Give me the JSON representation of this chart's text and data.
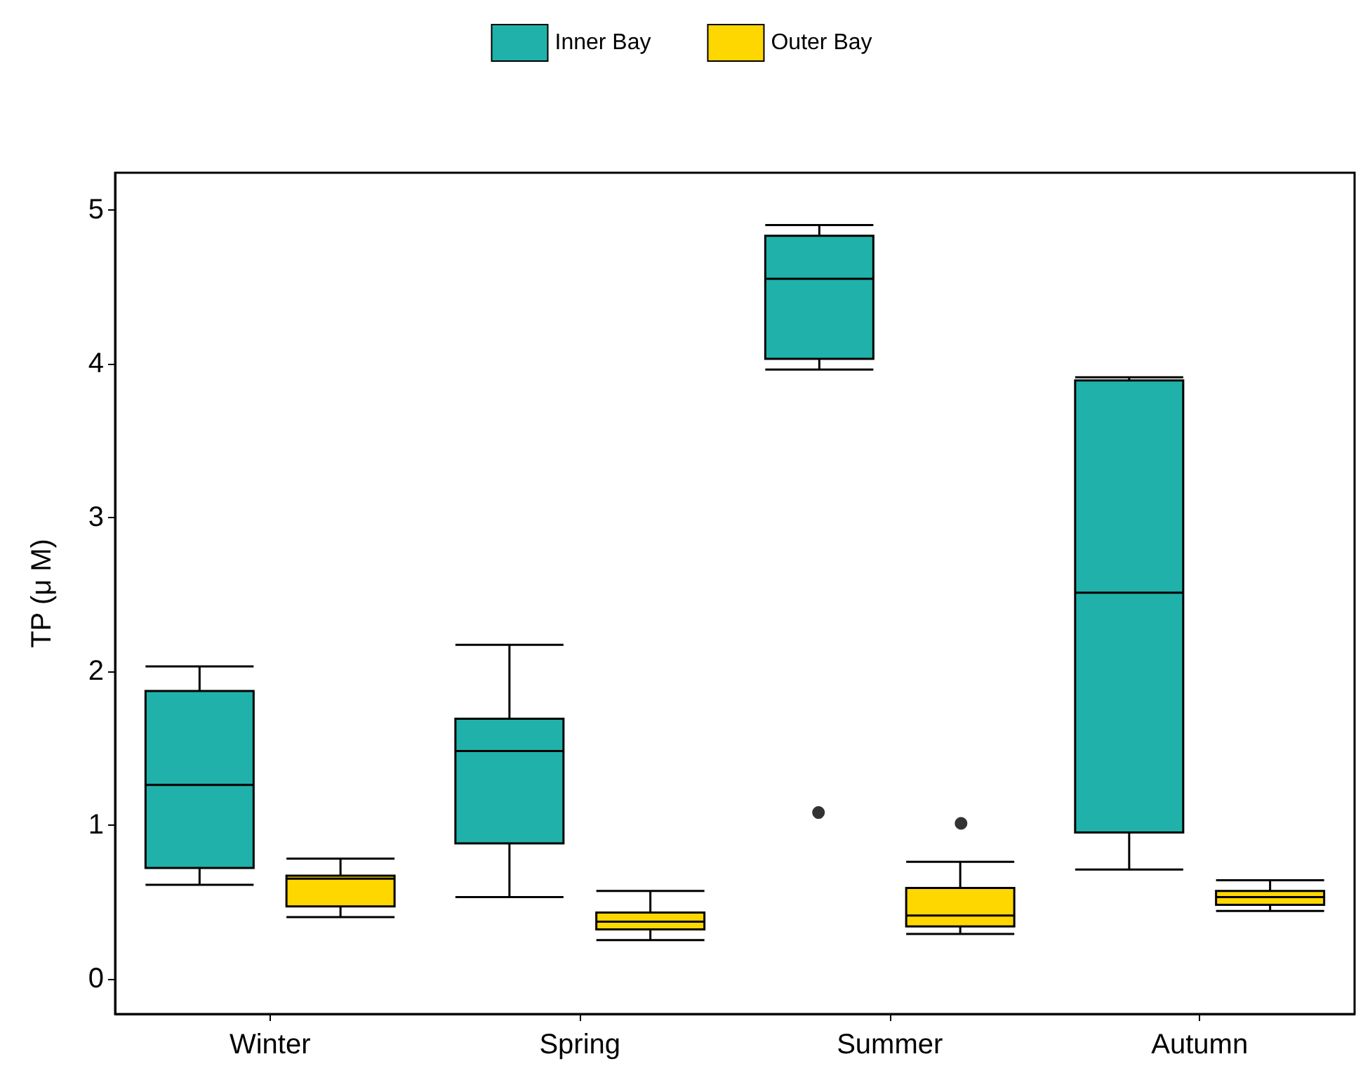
{
  "chart_data": {
    "type": "box",
    "ylabel": "TP (μ M)",
    "categories": [
      "Winter",
      "Spring",
      "Summer",
      "Autumn"
    ],
    "ylim": [
      -0.23,
      5.24
    ],
    "yticks": [
      0,
      1,
      2,
      3,
      4,
      5
    ],
    "grid": false,
    "legend": "top",
    "series": [
      {
        "name": "Inner Bay",
        "color": "#20b2aa",
        "boxes": [
          {
            "low": 0.61,
            "q1": 0.72,
            "median": 1.26,
            "q3": 1.87,
            "high": 2.03
          },
          {
            "low": 0.53,
            "q1": 0.88,
            "median": 1.48,
            "q3": 1.69,
            "high": 2.17
          },
          {
            "low": 3.96,
            "q1": 4.03,
            "median": 4.55,
            "q3": 4.83,
            "high": 4.9,
            "outliers": [
              1.08
            ]
          },
          {
            "low": 0.71,
            "q1": 0.95,
            "median": 2.51,
            "q3": 3.89,
            "high": 3.91
          }
        ]
      },
      {
        "name": "Outer Bay",
        "color": "#ffd700",
        "boxes": [
          {
            "low": 0.4,
            "q1": 0.47,
            "median": 0.65,
            "q3": 0.67,
            "high": 0.78
          },
          {
            "low": 0.25,
            "q1": 0.32,
            "median": 0.37,
            "q3": 0.43,
            "high": 0.57
          },
          {
            "low": 0.29,
            "q1": 0.34,
            "median": 0.41,
            "q3": 0.59,
            "high": 0.76,
            "outliers": [
              1.01
            ]
          },
          {
            "low": 0.44,
            "q1": 0.48,
            "median": 0.53,
            "q3": 0.57,
            "high": 0.64
          }
        ]
      }
    ]
  }
}
